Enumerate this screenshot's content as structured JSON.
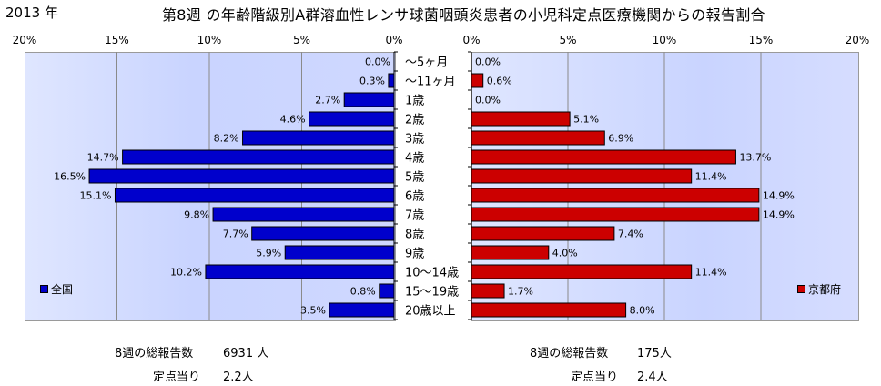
{
  "header": {
    "year": "2013 年",
    "title": "第8週 の年齢階級別A群溶血性レンサ球菌咽頭炎患者の小児科定点医療機関からの報告割合"
  },
  "footer": {
    "left_total_label": "8週の総報告数",
    "left_total_value": "6931 人",
    "left_per_label": "定点当り",
    "left_per_value": "2.2人",
    "right_total_label": "8週の総報告数",
    "right_total_value": "175人",
    "right_per_label": "定点当り",
    "right_per_value": "2.4人"
  },
  "chart_data": [
    {
      "type": "bar",
      "orientation": "horizontal",
      "direction": "right-to-left",
      "series": [
        {
          "name": "全国",
          "color": "#0000cc",
          "values": [
            0.0,
            0.3,
            2.7,
            4.6,
            8.2,
            14.7,
            16.5,
            15.1,
            9.8,
            7.7,
            5.9,
            10.2,
            0.8,
            3.5
          ],
          "labels": [
            "0.0%",
            "0.3%",
            "2.7%",
            "4.6%",
            "8.2%",
            "14.7%",
            "16.5%",
            "15.1%",
            "9.8%",
            "7.7%",
            "5.9%",
            "10.2%",
            "0.8%",
            "3.5%"
          ]
        }
      ],
      "xlim": [
        0,
        20
      ],
      "x_ticks": [
        "20%",
        "15%",
        "10%",
        "5%",
        "0%"
      ],
      "grid": true,
      "legend_placement": "bottom-left"
    },
    {
      "type": "bar",
      "orientation": "horizontal",
      "direction": "left-to-right",
      "series": [
        {
          "name": "京都府",
          "color": "#cc0000",
          "values": [
            0.0,
            0.6,
            0.0,
            5.1,
            6.9,
            13.7,
            11.4,
            14.9,
            14.9,
            7.4,
            4.0,
            11.4,
            1.7,
            8.0
          ],
          "labels": [
            "0.0%",
            "0.6%",
            "0.0%",
            "5.1%",
            "6.9%",
            "13.7%",
            "11.4%",
            "14.9%",
            "14.9%",
            "7.4%",
            "4.0%",
            "11.4%",
            "1.7%",
            "8.0%"
          ]
        }
      ],
      "xlim": [
        0,
        20
      ],
      "x_ticks": [
        "0%",
        "5%",
        "10%",
        "15%",
        "20%"
      ],
      "grid": true,
      "legend_placement": "bottom-right"
    }
  ],
  "categories": [
    "〜5ヶ月",
    "〜11ヶ月",
    "1歳",
    "2歳",
    "3歳",
    "4歳",
    "5歳",
    "6歳",
    "7歳",
    "8歳",
    "9歳",
    "10〜14歳",
    "15〜19歳",
    "20歳以上"
  ]
}
